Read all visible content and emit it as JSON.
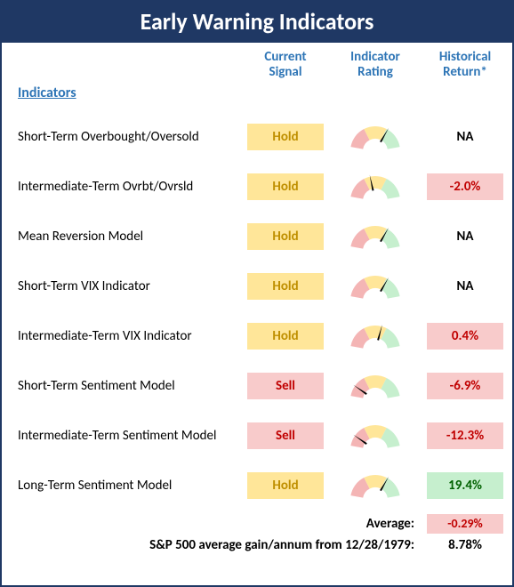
{
  "title": "Early Warning Indicators",
  "headers": {
    "signal": "Current Signal",
    "rating": "Indicator Rating",
    "return": "Historical Return*"
  },
  "section_label": "Indicators",
  "colors": {
    "hold_bg": "#ffe699",
    "hold_text": "#bf8f00",
    "sell_bg": "#f8cbcb",
    "sell_text": "#c00000",
    "pos_bg": "#c6efce",
    "pos_text": "#006100",
    "neg_bg": "#f8cbcb",
    "neg_text": "#c00000",
    "na_text": "#000000",
    "gauge_red": "#f4b5b5",
    "gauge_yellow": "#ffe699",
    "gauge_green": "#c6efce",
    "needle": "#000000"
  },
  "rows": [
    {
      "label": "Short-Term Overbought/Oversold",
      "signal": "Hold",
      "signal_type": "hold",
      "needle_angle": 30,
      "return": "NA",
      "return_type": "na"
    },
    {
      "label": "Intermediate-Term Ovrbt/Ovrsld",
      "signal": "Hold",
      "signal_type": "hold",
      "needle_angle": -12,
      "return": "-2.0%",
      "return_type": "neg"
    },
    {
      "label": "Mean Reversion Model",
      "signal": "Hold",
      "signal_type": "hold",
      "needle_angle": 30,
      "return": "NA",
      "return_type": "na"
    },
    {
      "label": "Short-Term VIX Indicator",
      "signal": "Hold",
      "signal_type": "hold",
      "needle_angle": 30,
      "return": "NA",
      "return_type": "na"
    },
    {
      "label": "Intermediate-Term VIX Indicator",
      "signal": "Hold",
      "signal_type": "hold",
      "needle_angle": 15,
      "return": "0.4%",
      "return_type": "neg"
    },
    {
      "label": "Short-Term Sentiment Model",
      "signal": "Sell",
      "signal_type": "sell",
      "needle_angle": -55,
      "return": "-6.9%",
      "return_type": "neg"
    },
    {
      "label": "Intermediate-Term Sentiment Model",
      "signal": "Sell",
      "signal_type": "sell",
      "needle_angle": -55,
      "return": "-12.3%",
      "return_type": "neg"
    },
    {
      "label": "Long-Term Sentiment Model",
      "signal": "Hold",
      "signal_type": "hold",
      "needle_angle": 30,
      "return": "19.4%",
      "return_type": "pos"
    }
  ],
  "average": {
    "label": "Average:",
    "value": "-0.29%",
    "type": "neg"
  },
  "footnote": {
    "label": "S&P 500 average gain/annum from 12/28/1979:",
    "value": "8.78%"
  }
}
